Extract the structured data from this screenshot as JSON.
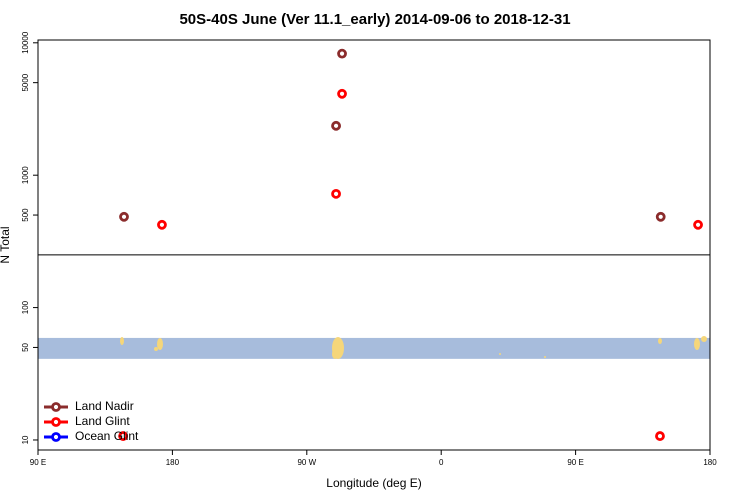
{
  "chart_data": {
    "type": "scatter",
    "title": "50S-40S June (Ver 11.1_early)   2014-09-06 to 2018-12-31",
    "x_label": "Longitude (deg E)",
    "y_label": "N Total",
    "log_y": true,
    "xlim": [
      90,
      540
    ],
    "ylim": [
      8.4,
      10500
    ],
    "xticks": [
      {
        "value": 90,
        "label": "90 E"
      },
      {
        "value": 180,
        "label": "180"
      },
      {
        "value": 270,
        "label": "90 W"
      },
      {
        "value": 360,
        "label": "0"
      },
      {
        "value": 450,
        "label": "90 E"
      },
      {
        "value": 540,
        "label": "180"
      }
    ],
    "yticks": [
      10,
      50,
      100,
      500,
      1000,
      5000,
      10000
    ],
    "reference_line": 250,
    "map_band": [
      41,
      59
    ],
    "legend": "bottom-left",
    "series": [
      {
        "name": "Land Nadir",
        "color": "#8b2c2c",
        "x": [
          147.6,
          289.6,
          293.6,
          507
        ],
        "values": [
          485,
          2360,
          8280,
          485
        ]
      },
      {
        "name": "Land Glint",
        "color": "#ff0000",
        "x": [
          173,
          293.6,
          289.6,
          532,
          147,
          506.5
        ],
        "values": [
          422,
          4120,
          723,
          422,
          10.7,
          10.7
        ]
      },
      {
        "name": "Ocean Glint",
        "color": "#0000ff",
        "x": [],
        "values": []
      }
    ]
  }
}
